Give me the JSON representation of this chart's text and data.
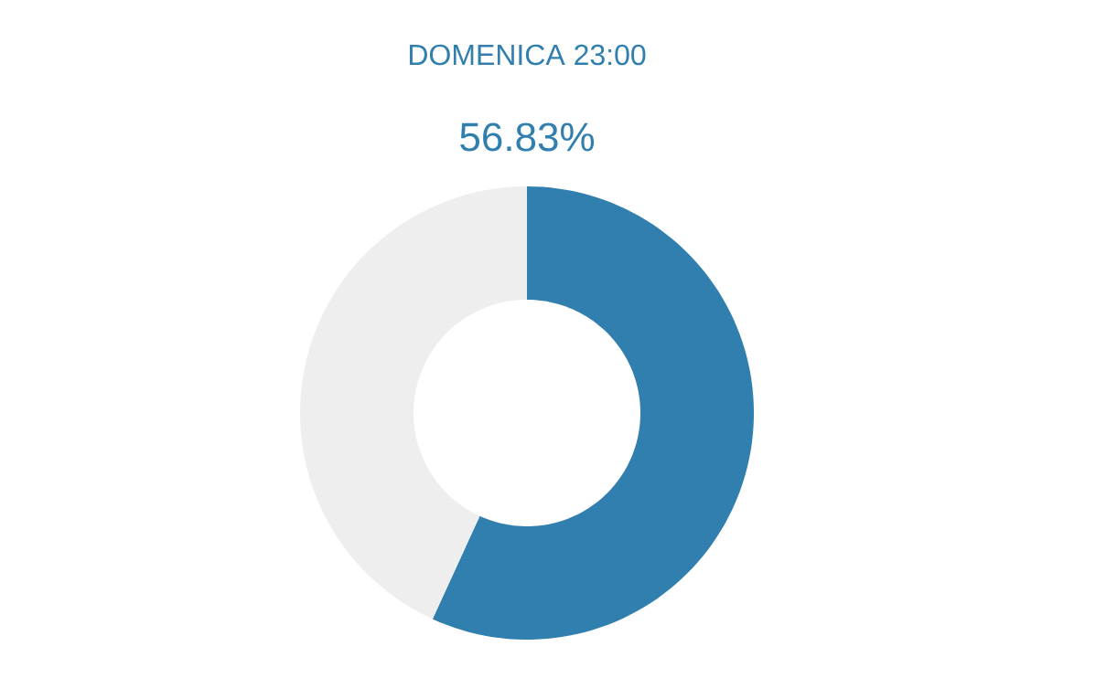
{
  "chart_data": {
    "type": "donut",
    "title": "DOMENICA  23:00",
    "subtitle": "56.83%",
    "categories": [
      null,
      null
    ],
    "values": [
      56.83,
      43.17
    ],
    "colors": [
      "#317fae",
      "#eeeeee"
    ]
  }
}
